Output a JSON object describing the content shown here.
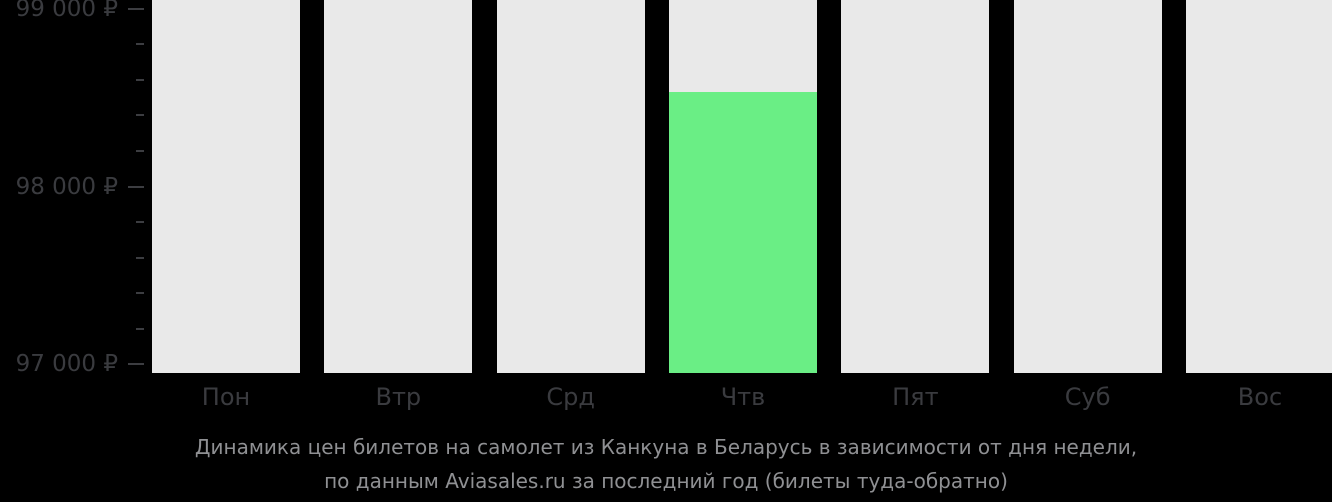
{
  "colors": {
    "bg": "#000000",
    "bar_default": "#e9e9e9",
    "bar_highlight": "#6aee85",
    "axis_text": "#3a3b3f",
    "tick": "#3c3d41",
    "caption_text": "#8f9093"
  },
  "chart_data": {
    "type": "bar",
    "categories": [
      "Пон",
      "Втр",
      "Срд",
      "Чтв",
      "Пят",
      "Суб",
      "Вос"
    ],
    "values": [
      null,
      null,
      null,
      98530,
      null,
      null,
      null
    ],
    "clipped_above_max": [
      true,
      true,
      true,
      false,
      true,
      true,
      true
    ],
    "highlight_index": 3,
    "currency": "₽",
    "ylim": [
      96950,
      99050
    ],
    "y_axis": {
      "major_ticks": [
        {
          "value": 99000,
          "label": "99 000 ₽"
        },
        {
          "value": 98000,
          "label": "98 000 ₽"
        },
        {
          "value": 97000,
          "label": "97 000 ₽"
        }
      ],
      "minor_tick_values": [
        98800,
        98600,
        98400,
        98200,
        97800,
        97600,
        97400,
        97200
      ]
    },
    "grid": false,
    "legend": false,
    "note": "Gray bars represent days whose values exceed the visible axis maximum and are clipped at the top of the plot; the green bar marks the highlighted (cheapest) day."
  },
  "caption": {
    "line1": "Динамика цен билетов на самолет из Канкуна в Беларусь в зависимости от дня недели,",
    "line2": "по данным Aviasales.ru за последний год (билеты туда-обратно)"
  }
}
